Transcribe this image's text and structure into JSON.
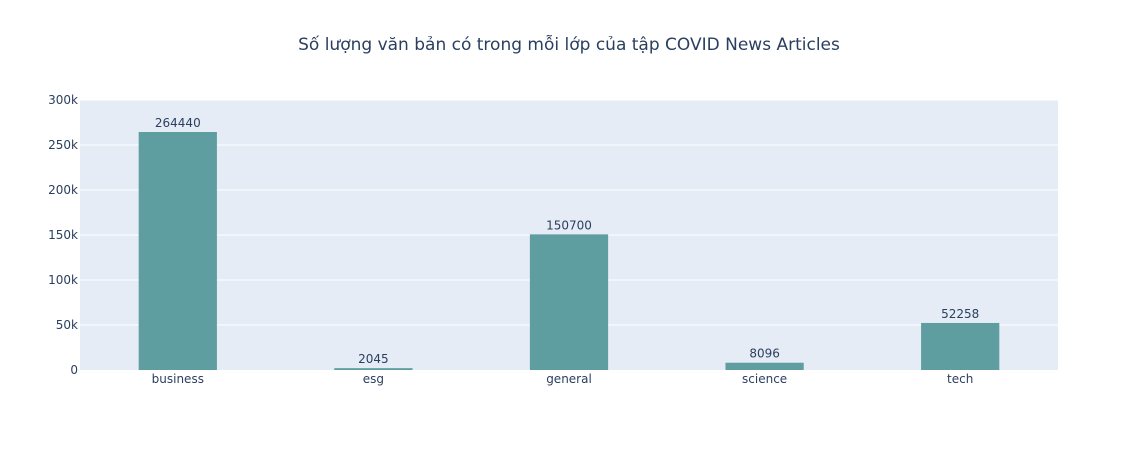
{
  "colors": {
    "plot_bg": "#e5ecf6",
    "grid": "#ffffff",
    "bar": "#5f9ea0",
    "text": "#2a3f5f"
  },
  "chart_data": {
    "type": "bar",
    "title": "Số lượng văn bản có trong mỗi lớp của tập COVID News Articles",
    "xlabel": "",
    "ylabel": "",
    "categories": [
      "business",
      "esg",
      "general",
      "science",
      "tech"
    ],
    "values": [
      264440,
      2045,
      150700,
      8096,
      52258
    ],
    "data_labels": [
      "264440",
      "2045",
      "150700",
      "8096",
      "52258"
    ],
    "ylim": [
      0,
      300000
    ],
    "yticks": [
      0,
      50000,
      100000,
      150000,
      200000,
      250000,
      300000
    ],
    "ytick_labels": [
      "0",
      "50k",
      "100k",
      "150k",
      "200k",
      "250k",
      "300k"
    ],
    "grid": true,
    "legend": "none"
  }
}
